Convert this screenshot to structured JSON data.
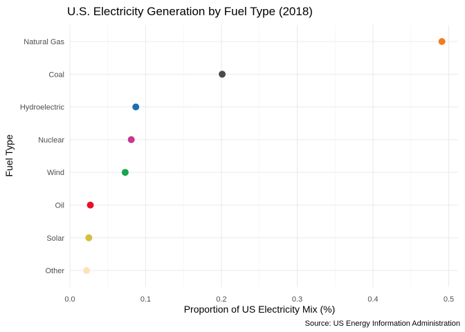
{
  "chart_data": {
    "type": "scatter",
    "title": "U.S. Electricity Generation by Fuel Type (2018)",
    "xlabel": "Proportion of US Electricity Mix (%)",
    "ylabel": "Fuel Type",
    "caption": "Source: US Energy Information Administration",
    "xlim": [
      0.0,
      0.5
    ],
    "xticks": [
      0.0,
      0.1,
      0.2,
      0.3,
      0.4,
      0.5
    ],
    "xtick_labels": [
      "0.0",
      "0.1",
      "0.2",
      "0.3",
      "0.4",
      "0.5"
    ],
    "grid": true,
    "legend": "none",
    "categories": [
      "Natural Gas",
      "Coal",
      "Hydroelectric",
      "Nuclear",
      "Wind",
      "Oil",
      "Solar",
      "Other"
    ],
    "values": [
      0.491,
      0.201,
      0.087,
      0.081,
      0.073,
      0.027,
      0.025,
      0.022
    ],
    "colors": [
      "#f47b20",
      "#4a4a4a",
      "#1a6fb5",
      "#c8378f",
      "#19a54a",
      "#e8102c",
      "#d4c03a",
      "#fde2b8"
    ]
  }
}
